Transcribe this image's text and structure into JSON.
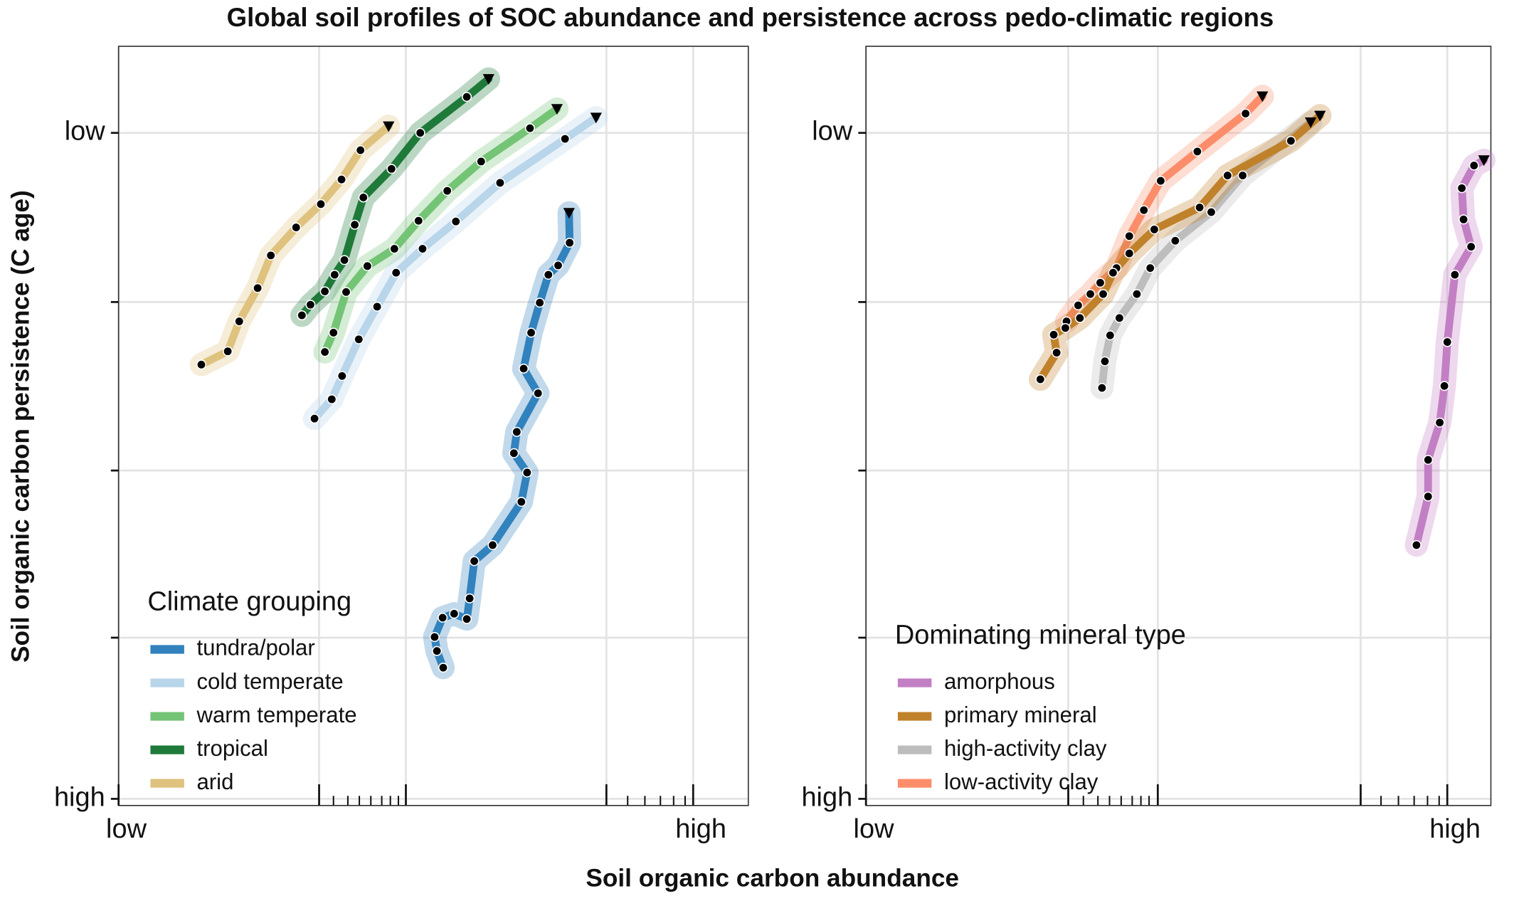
{
  "title": "Global soil profiles of SOC abundance and persistence across pedo-climatic regions",
  "xlabel": "Soil organic carbon abundance",
  "ylabel": "Soil organic carbon persistence (C age)",
  "chart_data": [
    {
      "type": "line",
      "legend_title": "Climate grouping",
      "legend": "bottom-left",
      "grid": true,
      "yinverted": true,
      "xlim": [
        0,
        1.096
      ],
      "ylim": [
        -0.13,
        1.01
      ],
      "xticks": [
        {
          "value": 0,
          "label": "low"
        },
        {
          "value": 1,
          "label": "high"
        }
      ],
      "xgrid": [
        0.349,
        0.5,
        0.849
      ],
      "xminor": [
        0.374,
        0.399,
        0.419,
        0.439,
        0.458,
        0.473,
        0.487,
        0.886,
        0.916,
        0.943,
        0.966,
        0.986
      ],
      "yticks": [
        {
          "value": 0,
          "label": "low"
        },
        {
          "value": 1,
          "label": "high"
        }
      ],
      "ygrid": [
        0.254,
        0.507,
        0.758
      ],
      "series": [
        {
          "name": "tundra/polar",
          "color": "#3182bd",
          "x": [
            0.784,
            0.785,
            0.765,
            0.748,
            0.733,
            0.718,
            0.705,
            0.73,
            0.693,
            0.688,
            0.711,
            0.701,
            0.651,
            0.619,
            0.611,
            0.606,
            0.584,
            0.564,
            0.55,
            0.554,
            0.565
          ],
          "values": [
            0.12,
            0.165,
            0.199,
            0.213,
            0.255,
            0.3,
            0.354,
            0.391,
            0.449,
            0.481,
            0.51,
            0.554,
            0.619,
            0.643,
            0.699,
            0.73,
            0.722,
            0.728,
            0.757,
            0.778,
            0.803
          ]
        },
        {
          "name": "cold temperate",
          "color": "#b8d5ea",
          "x": [
            0.831,
            0.777,
            0.664,
            0.587,
            0.529,
            0.483,
            0.45,
            0.418,
            0.389,
            0.371,
            0.341
          ],
          "values": [
            -0.023,
            0.009,
            0.075,
            0.133,
            0.174,
            0.21,
            0.261,
            0.31,
            0.365,
            0.4,
            0.429
          ]
        },
        {
          "name": "warm temperate",
          "color": "#74c476",
          "x": [
            0.763,
            0.716,
            0.631,
            0.572,
            0.522,
            0.48,
            0.433,
            0.396,
            0.374,
            0.359
          ],
          "values": [
            -0.036,
            -0.007,
            0.043,
            0.087,
            0.132,
            0.174,
            0.2,
            0.239,
            0.3,
            0.329
          ]
        },
        {
          "name": "tropical",
          "color": "#1f7a3a",
          "x": [
            0.644,
            0.606,
            0.525,
            0.475,
            0.426,
            0.411,
            0.393,
            0.376,
            0.359,
            0.334,
            0.319
          ],
          "values": [
            -0.081,
            -0.054,
            0.0,
            0.054,
            0.097,
            0.138,
            0.191,
            0.213,
            0.238,
            0.258,
            0.274
          ]
        },
        {
          "name": "arid",
          "color": "#dfc27d",
          "x": [
            0.47,
            0.421,
            0.388,
            0.352,
            0.309,
            0.265,
            0.242,
            0.21,
            0.19,
            0.144
          ],
          "values": [
            -0.01,
            0.026,
            0.07,
            0.107,
            0.142,
            0.184,
            0.233,
            0.283,
            0.328,
            0.348
          ]
        }
      ]
    },
    {
      "type": "line",
      "legend_title": "Dominating mineral type",
      "legend": "bottom-left",
      "grid": true,
      "yinverted": true,
      "xlim": [
        0,
        1.075
      ],
      "ylim": [
        -0.13,
        1.01
      ],
      "xticks": [
        {
          "value": 0,
          "label": "low"
        },
        {
          "value": 1,
          "label": "high"
        }
      ],
      "xgrid": [
        0.348,
        0.502,
        0.851
      ],
      "xminor": [
        0.374,
        0.399,
        0.419,
        0.439,
        0.458,
        0.473,
        0.487,
        0.886,
        0.916,
        0.943,
        0.966,
        0.986
      ],
      "yticks": [
        {
          "value": 0,
          "label": "low"
        },
        {
          "value": 1,
          "label": "high"
        }
      ],
      "ygrid": [
        0.254,
        0.507,
        0.758
      ],
      "series": [
        {
          "name": "amorphous",
          "color": "#c27fc4",
          "x": [
            1.063,
            1.046,
            1.025,
            1.028,
            1.041,
            1.013,
            1.0,
            0.995,
            0.987,
            0.967,
            0.967,
            0.947
          ],
          "values": [
            0.041,
            0.049,
            0.083,
            0.13,
            0.171,
            0.213,
            0.314,
            0.38,
            0.435,
            0.491,
            0.546,
            0.619
          ]
        },
        {
          "name": "primary mineral",
          "color": "#c0812b",
          "x": [
            0.781,
            0.731,
            0.622,
            0.574,
            0.496,
            0.453,
            0.425,
            0.408,
            0.368,
            0.343,
            0.323,
            0.328,
            0.3
          ],
          "values": [
            -0.026,
            0.012,
            0.064,
            0.112,
            0.145,
            0.181,
            0.21,
            0.242,
            0.278,
            0.293,
            0.303,
            0.33,
            0.37
          ]
        },
        {
          "name": "high-activity clay",
          "color": "#bdbdbd",
          "x": [
            0.765,
            0.648,
            0.594,
            0.532,
            0.489,
            0.466,
            0.436,
            0.42,
            0.411,
            0.406
          ],
          "values": [
            -0.016,
            0.064,
            0.119,
            0.162,
            0.203,
            0.242,
            0.278,
            0.304,
            0.343,
            0.383
          ]
        },
        {
          "name": "low-activity clay",
          "color": "#fc8d6b",
          "x": [
            0.682,
            0.653,
            0.57,
            0.507,
            0.478,
            0.453,
            0.431,
            0.403,
            0.386,
            0.365,
            0.345
          ],
          "values": [
            -0.055,
            -0.029,
            0.028,
            0.072,
            0.116,
            0.155,
            0.203,
            0.225,
            0.242,
            0.259,
            0.283
          ]
        }
      ]
    }
  ]
}
